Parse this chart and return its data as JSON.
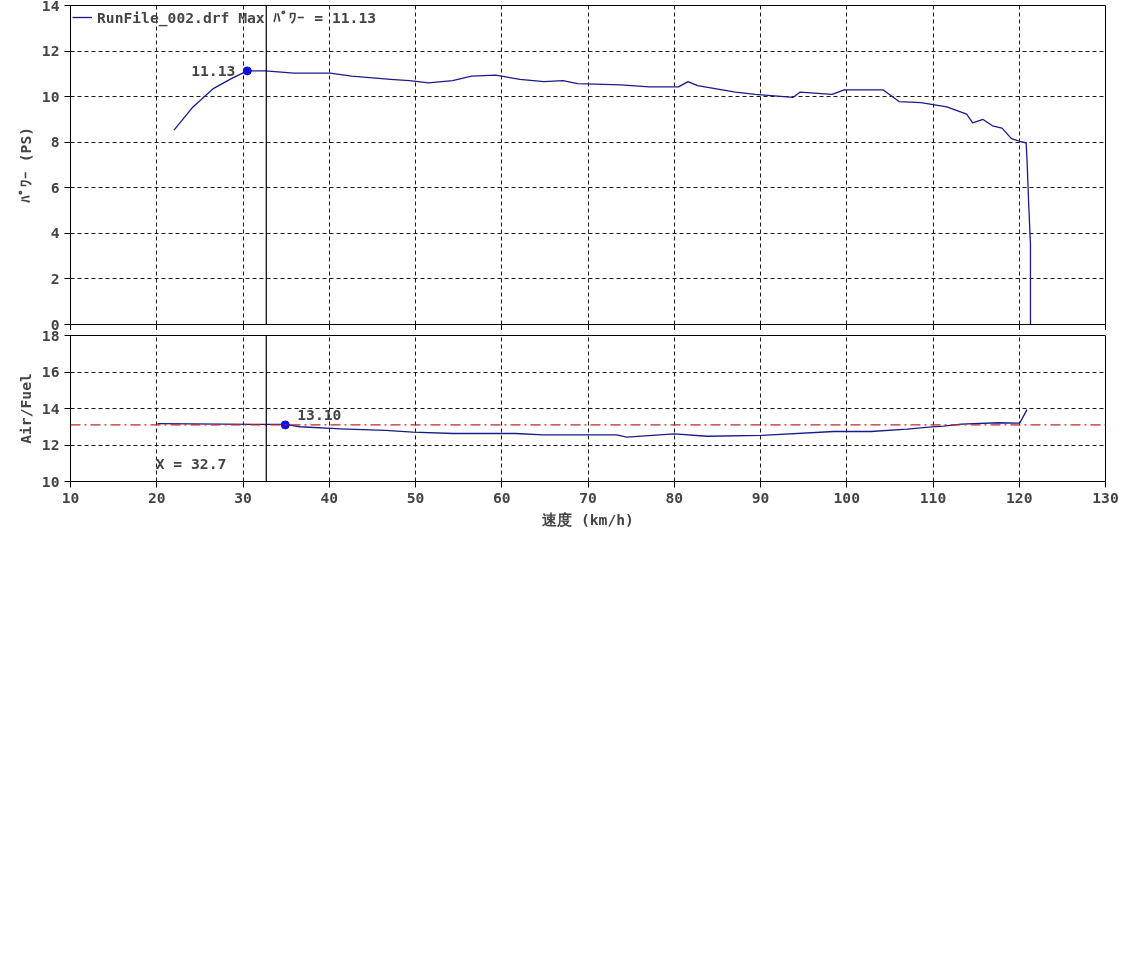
{
  "chart_data": [
    {
      "type": "line",
      "ylabel": "ﾊﾟﾜｰ (PS)",
      "xlim": [
        10,
        130
      ],
      "xticks": [
        10,
        20,
        30,
        40,
        50,
        60,
        70,
        80,
        90,
        100,
        110,
        120,
        130
      ],
      "ylim": [
        0,
        14
      ],
      "yticks": [
        0,
        2,
        4,
        6,
        8,
        10,
        12,
        14
      ],
      "tick_labels": "y",
      "grid": true,
      "legend": "top left",
      "series": [
        {
          "name": "RunFile_002.drf Max ﾊﾟﾜｰ = 11.13",
          "color": "#1a1a8c",
          "x": [
            22.0,
            24.2,
            26.5,
            28.7,
            30.5,
            32.6,
            35.9,
            40.1,
            42.6,
            47.1,
            49.3,
            51.5,
            54.3,
            56.5,
            59.3,
            62.1,
            64.9,
            67.1,
            68.8,
            73.8,
            77.1,
            80.5,
            81.6,
            82.7,
            84.9,
            87.1,
            89.4,
            93.8,
            94.6,
            98.3,
            99.7,
            102.4,
            104.2,
            106.1,
            108.6,
            110.2,
            111.6,
            113.9,
            114.6,
            115.8,
            116.9,
            118.0,
            119.1,
            120.2,
            120.8,
            120.9,
            121.1,
            121.3,
            121.3
          ],
          "values": [
            8.53,
            9.55,
            10.34,
            10.8,
            11.13,
            11.13,
            11.03,
            11.03,
            10.9,
            10.76,
            10.7,
            10.6,
            10.7,
            10.9,
            10.94,
            10.76,
            10.66,
            10.7,
            10.57,
            10.52,
            10.43,
            10.43,
            10.66,
            10.48,
            10.34,
            10.2,
            10.1,
            9.97,
            10.2,
            10.1,
            10.3,
            10.3,
            10.3,
            9.78,
            9.74,
            9.64,
            9.55,
            9.23,
            8.85,
            9.0,
            8.72,
            8.62,
            8.16,
            8.02,
            7.97,
            7.23,
            5.24,
            3.52,
            0
          ]
        }
      ],
      "ref_lines": [
        {
          "axis": "x",
          "value": 32.7,
          "color": "#000000"
        }
      ],
      "annotations": [
        {
          "text": "11.13",
          "x": 30.5,
          "y": 11.13
        }
      ]
    },
    {
      "type": "line",
      "xlabel": "速度 (km/h)",
      "ylabel": "Air/Fuel",
      "xlim": [
        10,
        130
      ],
      "xticks": [
        10,
        20,
        30,
        40,
        50,
        60,
        70,
        80,
        90,
        100,
        110,
        120,
        130
      ],
      "ylim": [
        10,
        18
      ],
      "yticks": [
        10,
        12,
        14,
        16,
        18
      ],
      "grid": true,
      "series": [
        {
          "color": "#1a1a8c",
          "x": [
            20.1,
            32.4,
            34.9,
            36.6,
            41.3,
            46.5,
            49.7,
            54.4,
            61.6,
            64.8,
            73.3,
            74.5,
            80.0,
            83.8,
            90.1,
            98.5,
            102.8,
            107.0,
            109.5,
            111.2,
            113.3,
            117.5,
            120.05,
            120.9
          ],
          "values": [
            13.17,
            13.13,
            13.13,
            13.0,
            12.88,
            12.8,
            12.7,
            12.63,
            12.63,
            12.56,
            12.56,
            12.43,
            12.61,
            12.48,
            12.53,
            12.74,
            12.74,
            12.87,
            12.98,
            13.03,
            13.14,
            13.22,
            13.2,
            13.94
          ]
        }
      ],
      "ref_lines": [
        {
          "axis": "y",
          "value": 13.1,
          "color": "#c0282d",
          "line_style": "dashdot"
        },
        {
          "axis": "x",
          "value": 32.7,
          "label": "X = 32.7",
          "color": "#000000"
        }
      ],
      "annotations": [
        {
          "text": "13.10",
          "x": 34.9,
          "y": 13.1
        }
      ]
    }
  ]
}
